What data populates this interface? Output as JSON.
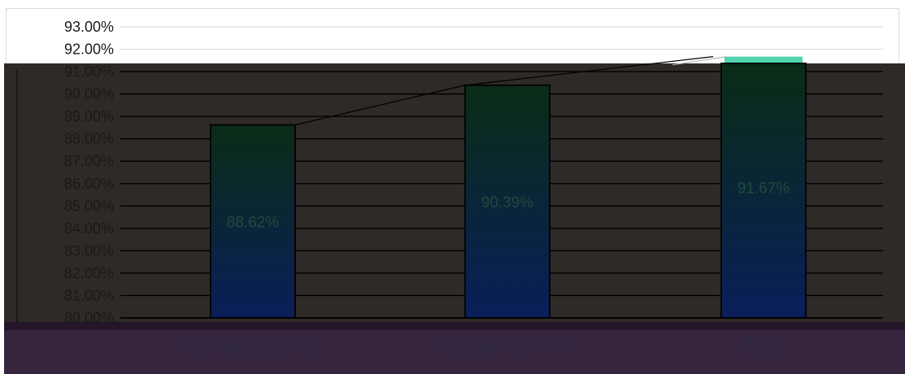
{
  "chart_data": {
    "type": "bar",
    "categories": [
      "湖南省普通高校",
      "湖南省高职专科",
      "我校"
    ],
    "values": [
      88.62,
      90.39,
      91.67
    ],
    "data_labels": [
      "88.62%",
      "90.39%",
      "91.67%"
    ],
    "ylim": [
      80,
      93
    ],
    "yticks": [
      80,
      81,
      82,
      83,
      84,
      85,
      86,
      87,
      88,
      89,
      90,
      91,
      92,
      93
    ],
    "ytick_labels": [
      "80.00%",
      "81.00%",
      "82.00%",
      "83.00%",
      "84.00%",
      "85.00%",
      "86.00%",
      "87.00%",
      "88.00%",
      "89.00%",
      "90.00%",
      "91.00%",
      "92.00%",
      "93.00%"
    ],
    "overlay_line": true,
    "grid": true,
    "legend": "none",
    "title": "",
    "xlabel": "",
    "ylabel": ""
  },
  "colors": {
    "plot_overlay": "#2e2a27",
    "axis_band": "#35253f",
    "bar_top": "#0b2c16",
    "bar_bottom": "#0a1f5a",
    "bar_highlight": "#52d3b0",
    "gridline_light": "#d9d9d9",
    "gridline_dark": "#000000",
    "trend_line": "#000000"
  }
}
